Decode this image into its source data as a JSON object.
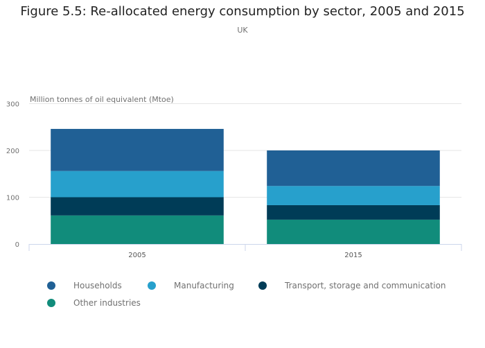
{
  "header": {
    "title": "Figure 5.5: Re-allocated energy consumption by sector, 2005 and 2015",
    "subtitle": "UK"
  },
  "chart_data": {
    "type": "bar",
    "stacked": true,
    "title": "Figure 5.5: Re-allocated energy consumption by sector, 2005 and 2015",
    "subtitle": "UK",
    "xlabel": "",
    "ylabel": "Million tonnes of oil equivalent (Mtoe)",
    "categories": [
      "2005",
      "2015"
    ],
    "ylim": [
      0,
      300
    ],
    "yticks": [
      0,
      100,
      200,
      300
    ],
    "grid": true,
    "legend_position": "bottom-left",
    "series": [
      {
        "name": "Other industries",
        "color": "#118c7b",
        "values": [
          61,
          52
        ]
      },
      {
        "name": "Transport, storage and communication",
        "color": "#003c57",
        "values": [
          39,
          31
        ]
      },
      {
        "name": "Manufacturing",
        "color": "#27a0cc",
        "values": [
          56,
          41
        ]
      },
      {
        "name": "Households",
        "color": "#206095",
        "values": [
          90,
          76
        ]
      }
    ]
  },
  "legend": {
    "items": [
      {
        "label": "Households",
        "color": "#206095"
      },
      {
        "label": "Manufacturing",
        "color": "#27a0cc"
      },
      {
        "label": "Transport, storage and communication",
        "color": "#003c57"
      },
      {
        "label": "Other industries",
        "color": "#118c7b"
      }
    ]
  }
}
